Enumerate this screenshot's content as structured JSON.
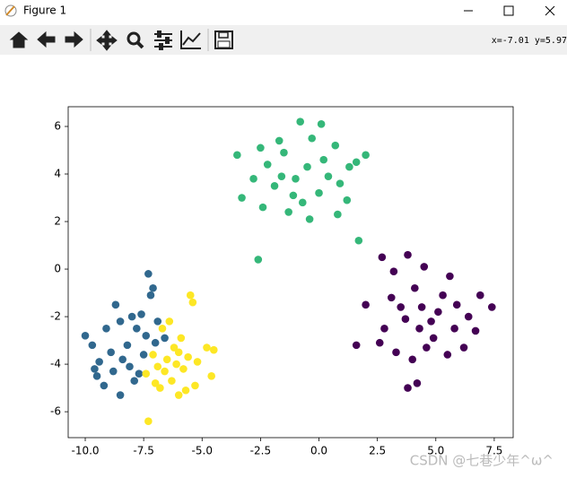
{
  "window": {
    "title": "Figure 1",
    "status": "x=-7.01 y=5.97"
  },
  "watermark": "CSDN @七巷少年^ω^",
  "chart_data": {
    "type": "scatter",
    "xlim": [
      -10.73,
      8.31
    ],
    "ylim": [
      -7.09,
      6.83
    ],
    "xticks": [
      {
        "value": -10,
        "label": "-10.0"
      },
      {
        "value": -7.5,
        "label": "-7.5"
      },
      {
        "value": -5,
        "label": "-5.0"
      },
      {
        "value": -2.5,
        "label": "-2.5"
      },
      {
        "value": 0,
        "label": "0.0"
      },
      2.5,
      {
        "value": 5,
        "label": "5.0"
      },
      7.5
    ],
    "yticks": [
      -6,
      -4,
      -2,
      0,
      2,
      4,
      6
    ],
    "series": [
      {
        "color": "#440154",
        "x": [
          1.6,
          7.4,
          2.7,
          3.8,
          4.2,
          3.8,
          2,
          3.2,
          4.5,
          5.6,
          6.9,
          2.8,
          3.3,
          4,
          5.5,
          6.2,
          4.8,
          5.1,
          4.4,
          5.8,
          3.7,
          4.9,
          6.4,
          3.1,
          5.3,
          4.6,
          2.6,
          6.7,
          4.1,
          5.9,
          3.5,
          4.3
        ],
        "values": [
          -3.2,
          -1.6,
          0.5,
          0.6,
          -4.8,
          -5,
          -1.5,
          -0.1,
          0.1,
          -0.3,
          -1.1,
          -2.5,
          -3.5,
          -3.8,
          -3.6,
          -3.3,
          -2.2,
          -1.8,
          -1.6,
          -2.5,
          -2.1,
          -2.9,
          -2,
          -1.2,
          -1.1,
          -3.3,
          -3.1,
          -2.6,
          -0.8,
          -1.5,
          -1.6,
          -2.5
        ]
      },
      {
        "color": "#31688e",
        "x": [
          -7.3,
          -7.2,
          -10,
          -9.5,
          -8.5,
          -9.2,
          -7.1,
          -8.7,
          -9.7,
          -8.2,
          -7.8,
          -7.5,
          -8.9,
          -8.1,
          -7.6,
          -6.6,
          -8.5,
          -9.1,
          -7.9,
          -7,
          -8.4,
          -9.4,
          -7.4,
          -8,
          -6.9,
          -8.8,
          -7.7,
          -9.6
        ],
        "values": [
          -0.2,
          -1.1,
          -2.8,
          -4.5,
          -5.3,
          -4.9,
          -0.8,
          -1.5,
          -3.2,
          -3.2,
          -2.5,
          -3.6,
          -3.5,
          -4.1,
          -1.9,
          -2.9,
          -2.2,
          -2.5,
          -4.7,
          -3.1,
          -3.8,
          -3.9,
          -2.8,
          -2,
          -2.2,
          -4.3,
          -4.4,
          -4.2
        ]
      },
      {
        "color": "#35b779",
        "x": [
          -0.8,
          0.1,
          -3.5,
          -3.3,
          -2.6,
          1.7,
          2,
          1.2,
          0.8,
          -2.4,
          -1.5,
          -1,
          -0.5,
          -1.9,
          0,
          -0.3,
          0.7,
          -2.2,
          -1.3,
          0.4,
          -0.7,
          1.3,
          -2.8,
          -1.7,
          0.2,
          -1.1,
          -2.5,
          1.6,
          -0.4,
          -1.6,
          0.9
        ],
        "values": [
          6.2,
          6.1,
          4.8,
          3,
          0.4,
          1.2,
          4.8,
          2.9,
          2.3,
          2.6,
          4.9,
          3.8,
          4.3,
          3.5,
          3.2,
          5.5,
          5.2,
          4.4,
          2.4,
          3.9,
          2.8,
          4.3,
          3.8,
          5.4,
          4.6,
          3.1,
          5.1,
          4.5,
          2.1,
          3.9,
          3.6
        ]
      },
      {
        "color": "#fde725",
        "x": [
          -7.3,
          -5.5,
          -4.8,
          -4.6,
          -6,
          -5.4,
          -6.5,
          -6.2,
          -6.9,
          -5.8,
          -7.1,
          -6.3,
          -5.6,
          -6.7,
          -5.9,
          -7.4,
          -6.1,
          -5.2,
          -6.8,
          -5.3,
          -6.4,
          -7,
          -5.7,
          -6,
          -4.5,
          -6.6
        ],
        "values": [
          -6.4,
          -1.1,
          -3.3,
          -4.5,
          -5.3,
          -1.4,
          -3.8,
          -3.3,
          -4.1,
          -4.2,
          -3.6,
          -4.7,
          -3.7,
          -2.5,
          -2.9,
          -4.4,
          -4,
          -3.9,
          -5,
          -4.9,
          -2.2,
          -4.8,
          -5.1,
          -3.5,
          -3.4,
          -4.3
        ]
      }
    ]
  }
}
